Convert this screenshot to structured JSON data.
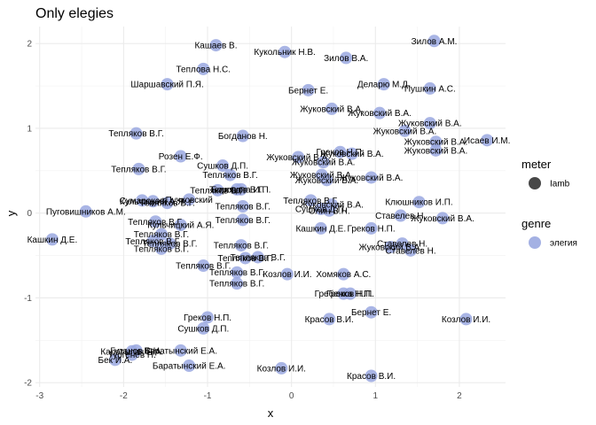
{
  "chart_data": {
    "type": "scatter",
    "title": "Only elegies",
    "xlabel": "x",
    "ylabel": "y",
    "xlim": [
      -3.05,
      2.55
    ],
    "ylim": [
      -2.05,
      2.2
    ],
    "x_ticks": [
      -3,
      -2,
      -1,
      0,
      1,
      2
    ],
    "y_ticks": [
      -2,
      -1,
      0,
      1,
      2
    ],
    "grid": true,
    "point_color": "#9aa8e0",
    "legend": {
      "position": "right",
      "groups": [
        {
          "title": "meter",
          "items": [
            {
              "label": "Iamb",
              "symbol": "circle",
              "color": "#333333"
            }
          ]
        },
        {
          "title": "genre",
          "items": [
            {
              "label": "элегия",
              "symbol": "circle",
              "color": "#9aa8e0"
            }
          ]
        }
      ]
    },
    "points": [
      {
        "x": -0.9,
        "y": 1.98,
        "label": "Кашаев В."
      },
      {
        "x": -0.08,
        "y": 1.9,
        "label": "Кукольник Н.В."
      },
      {
        "x": 0.65,
        "y": 1.83,
        "label": "Зилов В.А."
      },
      {
        "x": 1.7,
        "y": 2.03,
        "label": "Зилов А.М."
      },
      {
        "x": -1.05,
        "y": 1.7,
        "label": "Теплова Н.С."
      },
      {
        "x": -1.48,
        "y": 1.52,
        "label": "Шаршавский П.Я."
      },
      {
        "x": 1.1,
        "y": 1.52,
        "label": "Деларю М.Д."
      },
      {
        "x": 1.65,
        "y": 1.47,
        "label": "Пушкин А.С."
      },
      {
        "x": 0.2,
        "y": 1.45,
        "label": "Бернет Е."
      },
      {
        "x": 0.48,
        "y": 1.23,
        "label": "Жуковский В.А."
      },
      {
        "x": 1.05,
        "y": 1.18,
        "label": "Жуковский В.А."
      },
      {
        "x": 1.65,
        "y": 1.06,
        "label": "Жуковский В.А."
      },
      {
        "x": 1.35,
        "y": 0.97,
        "label": "Жуковский В.А."
      },
      {
        "x": -1.85,
        "y": 0.94,
        "label": "Тепляков В.Г."
      },
      {
        "x": -0.58,
        "y": 0.91,
        "label": "Богданов Н."
      },
      {
        "x": 1.72,
        "y": 0.84,
        "label": "Жуковский В.А."
      },
      {
        "x": 2.33,
        "y": 0.86,
        "label": "Исаев И.М."
      },
      {
        "x": 1.72,
        "y": 0.74,
        "label": "Жуковский В.А."
      },
      {
        "x": 0.58,
        "y": 0.72,
        "label": "Греков Н.П."
      },
      {
        "x": 0.72,
        "y": 0.7,
        "label": "Жуковский В.А."
      },
      {
        "x": -1.32,
        "y": 0.67,
        "label": "Розен Е.Ф."
      },
      {
        "x": 0.08,
        "y": 0.66,
        "label": "Жуковский В.А."
      },
      {
        "x": 0.38,
        "y": 0.6,
        "label": "Жуковский В.А."
      },
      {
        "x": -0.82,
        "y": 0.56,
        "label": "Сушков Д.П."
      },
      {
        "x": -1.82,
        "y": 0.52,
        "label": "Тепляков В.Г."
      },
      {
        "x": -0.73,
        "y": 0.45,
        "label": "Тепляков В.Г."
      },
      {
        "x": 0.36,
        "y": 0.45,
        "label": "Жуковский В.А."
      },
      {
        "x": 0.42,
        "y": 0.39,
        "label": "Жуковский В.А."
      },
      {
        "x": 0.95,
        "y": 0.42,
        "label": "Жуковский В.А."
      },
      {
        "x": -0.65,
        "y": 0.28,
        "label": "Тепляков В.Г."
      },
      {
        "x": -0.88,
        "y": 0.27,
        "label": "Тепляков В.Г."
      },
      {
        "x": -0.6,
        "y": 0.28,
        "label": "Бороздна И.П."
      },
      {
        "x": -1.22,
        "y": 0.16,
        "label": "Пучковский"
      },
      {
        "x": -1.78,
        "y": 0.15,
        "label": "Сумароков"
      },
      {
        "x": -1.65,
        "y": 0.14,
        "label": "Кульчицкий А.Я."
      },
      {
        "x": -1.48,
        "y": 0.12,
        "label": "Тепляков В.Г."
      },
      {
        "x": 0.23,
        "y": 0.15,
        "label": "Тепляков В.Г."
      },
      {
        "x": 0.48,
        "y": 0.1,
        "label": "Жуковский В.А."
      },
      {
        "x": 0.35,
        "y": 0.05,
        "label": "Сушков Д.П."
      },
      {
        "x": 0.45,
        "y": 0.03,
        "label": "Олин В.Н."
      },
      {
        "x": -0.58,
        "y": 0.08,
        "label": "Тепляков В.Г."
      },
      {
        "x": 1.52,
        "y": 0.13,
        "label": "Клюшников И.П."
      },
      {
        "x": -2.45,
        "y": 0.02,
        "label": "Пуговишников А.М."
      },
      {
        "x": 1.3,
        "y": -0.03,
        "label": "Ставелев Н."
      },
      {
        "x": 1.8,
        "y": -0.06,
        "label": "Жуковский В.А."
      },
      {
        "x": -0.58,
        "y": -0.08,
        "label": "Тепляков В.Г."
      },
      {
        "x": -1.62,
        "y": -0.1,
        "label": "Тепляков В.Г."
      },
      {
        "x": -1.32,
        "y": -0.14,
        "label": "Кульчицкий А.Я."
      },
      {
        "x": 0.35,
        "y": -0.18,
        "label": "Кашкин Д.Е."
      },
      {
        "x": 0.95,
        "y": -0.18,
        "label": "Греков Н.П."
      },
      {
        "x": -1.55,
        "y": -0.25,
        "label": "Тепляков В.Г."
      },
      {
        "x": -2.85,
        "y": -0.31,
        "label": "Кашкин Д.Е."
      },
      {
        "x": -1.65,
        "y": -0.33,
        "label": "Тепляков В.Г."
      },
      {
        "x": -1.45,
        "y": -0.36,
        "label": "Тепляков В.Г."
      },
      {
        "x": -0.6,
        "y": -0.38,
        "label": "Тепляков В.Г."
      },
      {
        "x": 1.32,
        "y": -0.36,
        "label": "Ставелев Н."
      },
      {
        "x": 1.18,
        "y": -0.4,
        "label": "Жуковский В.А."
      },
      {
        "x": -1.55,
        "y": -0.42,
        "label": "Тепляков В.Г."
      },
      {
        "x": 1.42,
        "y": -0.44,
        "label": "Ставелев Н."
      },
      {
        "x": -0.4,
        "y": -0.52,
        "label": "Тепляков В.Г."
      },
      {
        "x": -0.55,
        "y": -0.53,
        "label": "Тепляков В.Г."
      },
      {
        "x": -1.05,
        "y": -0.62,
        "label": "Тепляков В.Г."
      },
      {
        "x": -0.65,
        "y": -0.7,
        "label": "Тепляков В.Г."
      },
      {
        "x": -0.05,
        "y": -0.72,
        "label": "Козлов И.И."
      },
      {
        "x": 0.62,
        "y": -0.72,
        "label": "Хомяков А.С."
      },
      {
        "x": -0.65,
        "y": -0.83,
        "label": "Тепляков В.Г."
      },
      {
        "x": 0.62,
        "y": -0.95,
        "label": "Гребенка Н.П."
      },
      {
        "x": 0.7,
        "y": -0.95,
        "label": "Греков Н.П."
      },
      {
        "x": 0.95,
        "y": -1.17,
        "label": "Бернет Е."
      },
      {
        "x": -1.0,
        "y": -1.23,
        "label": "Греков Н.П."
      },
      {
        "x": 0.45,
        "y": -1.25,
        "label": "Красов В.И."
      },
      {
        "x": 2.08,
        "y": -1.25,
        "label": "Козлов И.И."
      },
      {
        "x": -1.05,
        "y": -1.36,
        "label": "Сушков Д.П."
      },
      {
        "x": -1.9,
        "y": -1.63,
        "label": "Каратыгин П.А."
      },
      {
        "x": -1.85,
        "y": -1.62,
        "label": "Гутанов В.Н."
      },
      {
        "x": -1.32,
        "y": -1.62,
        "label": "Баратынский Е.А."
      },
      {
        "x": -1.9,
        "y": -1.67,
        "label": "Тургенев Н."
      },
      {
        "x": -2.1,
        "y": -1.73,
        "label": "Бек И.А."
      },
      {
        "x": -1.22,
        "y": -1.8,
        "label": "Баратынский Е.А."
      },
      {
        "x": -0.12,
        "y": -1.83,
        "label": "Козлов И.И."
      },
      {
        "x": 0.95,
        "y": -1.92,
        "label": "Красов В.И."
      }
    ]
  }
}
